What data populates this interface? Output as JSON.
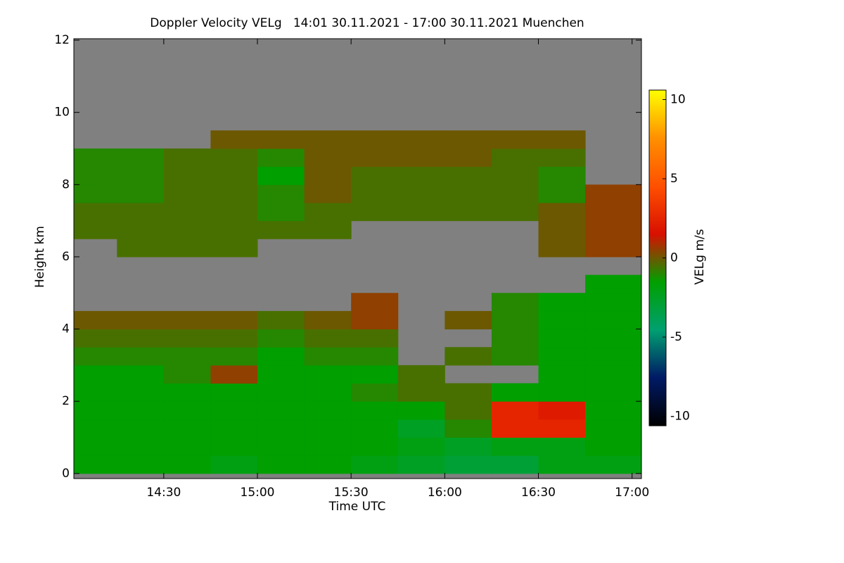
{
  "chart_data": {
    "type": "heatmap",
    "title": "Doppler Velocity VELg   14:01 30.11.2021 - 17:00 30.11.2021 Muenchen",
    "xlabel": "Time UTC",
    "ylabel": "Height km",
    "colorbar_label": "VELg m/s",
    "xlim": [
      14.02,
      17.05
    ],
    "xticks": [
      {
        "value": 14.5,
        "label": "14:30"
      },
      {
        "value": 15.0,
        "label": "15:00"
      },
      {
        "value": 15.5,
        "label": "15:30"
      },
      {
        "value": 16.0,
        "label": "16:00"
      },
      {
        "value": 16.5,
        "label": "16:30"
      },
      {
        "value": 17.0,
        "label": "17:00"
      }
    ],
    "ylim": [
      -0.14,
      12.04
    ],
    "yticks": [
      0,
      2,
      4,
      6,
      8,
      10,
      12
    ],
    "zlim": [
      -10.6,
      10.6
    ],
    "zticks": [
      -10,
      -5,
      0,
      5,
      10
    ],
    "colormap": [
      "#000000",
      "#001a66",
      "#00a070",
      "#00a000",
      "#d81000",
      "#ff5000",
      "#ff9000",
      "#ffff00"
    ],
    "missing_color": "#808080",
    "xbins": [
      14.02,
      14.25,
      14.5,
      14.75,
      15.0,
      15.25,
      15.5,
      15.75,
      16.0,
      16.25,
      16.5,
      16.75,
      17.05
    ],
    "ybins": [
      0,
      0.5,
      1,
      1.5,
      2,
      2.5,
      3,
      3.5,
      4,
      4.5,
      5,
      5.5,
      6,
      6.5,
      7,
      7.5,
      8,
      8.5,
      9,
      9.5,
      10,
      10.5,
      11,
      11.5,
      12
    ],
    "z": [
      [
        -1.5,
        -1.5,
        -1.5,
        -2,
        -1.5,
        -1.5,
        -2,
        -2.5,
        -3,
        -3,
        -2,
        -2
      ],
      [
        -1.5,
        -1.5,
        -1.5,
        -1.5,
        -1.5,
        -1.5,
        -1.5,
        -2,
        -2.5,
        -2,
        -2,
        -1.5
      ],
      [
        -1.5,
        -1.5,
        -1.5,
        -1.5,
        -1.5,
        -1.5,
        -1.5,
        -2.5,
        -1,
        2.5,
        2.5,
        -1.5
      ],
      [
        -1.5,
        -1.5,
        -1.5,
        -1.5,
        -1.5,
        -1.5,
        -1.5,
        -1.5,
        -0.5,
        2.5,
        2,
        -1.5
      ],
      [
        -1.5,
        -1.5,
        -1.5,
        -1.5,
        -1.5,
        -1.5,
        -1,
        -0.5,
        -0.5,
        -1.5,
        -1.5,
        -1.5
      ],
      [
        -1.5,
        -1.5,
        -1,
        0.5,
        -1.5,
        -1.5,
        -1.5,
        -0.5,
        null,
        null,
        -1.5,
        -1.5
      ],
      [
        -1,
        -1,
        -1,
        -1,
        -1.5,
        -1,
        -1,
        null,
        -0.5,
        -1,
        -1.5,
        -1.5
      ],
      [
        -0.5,
        -0.5,
        -0.5,
        -0.5,
        -1,
        -0.5,
        -0.5,
        null,
        null,
        -1,
        -1.5,
        -1.5
      ],
      [
        0,
        0,
        0,
        0,
        -0.5,
        0,
        0.5,
        null,
        0,
        -1,
        -1.5,
        -1.5
      ],
      [
        null,
        null,
        null,
        null,
        null,
        null,
        0.5,
        null,
        null,
        -1,
        -1.5,
        -1.5
      ],
      [
        null,
        null,
        null,
        null,
        null,
        null,
        null,
        null,
        null,
        null,
        null,
        -1.5
      ],
      [
        null,
        null,
        null,
        null,
        null,
        null,
        null,
        null,
        null,
        null,
        null,
        null
      ],
      [
        null,
        -0.5,
        -0.5,
        -0.5,
        null,
        null,
        null,
        null,
        null,
        null,
        0,
        0.5
      ],
      [
        -0.5,
        -0.5,
        -0.5,
        -0.5,
        -0.5,
        -0.5,
        null,
        null,
        null,
        null,
        0,
        0.5
      ],
      [
        -0.5,
        -0.5,
        -0.5,
        -0.5,
        -1,
        -0.5,
        -0.5,
        -0.5,
        -0.5,
        -0.5,
        0,
        0.5
      ],
      [
        -1,
        -1,
        -0.5,
        -0.5,
        -1,
        0,
        -0.5,
        -0.5,
        -0.5,
        -0.5,
        -1,
        0.5
      ],
      [
        -1,
        -1,
        -0.5,
        -0.5,
        -1.5,
        0,
        -0.5,
        -0.5,
        -0.5,
        -0.5,
        -1,
        null
      ],
      [
        -1,
        -1,
        -0.5,
        -0.5,
        -1,
        0,
        0,
        0,
        0,
        -0.5,
        -0.5,
        null
      ],
      [
        null,
        null,
        null,
        0,
        0,
        0,
        0,
        0,
        0,
        0,
        0,
        null
      ],
      [
        null,
        null,
        null,
        null,
        null,
        null,
        null,
        null,
        null,
        null,
        null,
        null
      ],
      [
        null,
        null,
        null,
        null,
        null,
        null,
        null,
        null,
        null,
        null,
        null,
        null
      ],
      [
        null,
        null,
        null,
        null,
        null,
        null,
        null,
        null,
        null,
        null,
        null,
        null
      ],
      [
        null,
        null,
        null,
        null,
        null,
        null,
        null,
        null,
        null,
        null,
        null,
        null
      ],
      [
        null,
        null,
        null,
        null,
        null,
        null,
        null,
        null,
        null,
        null,
        null,
        null
      ]
    ]
  }
}
